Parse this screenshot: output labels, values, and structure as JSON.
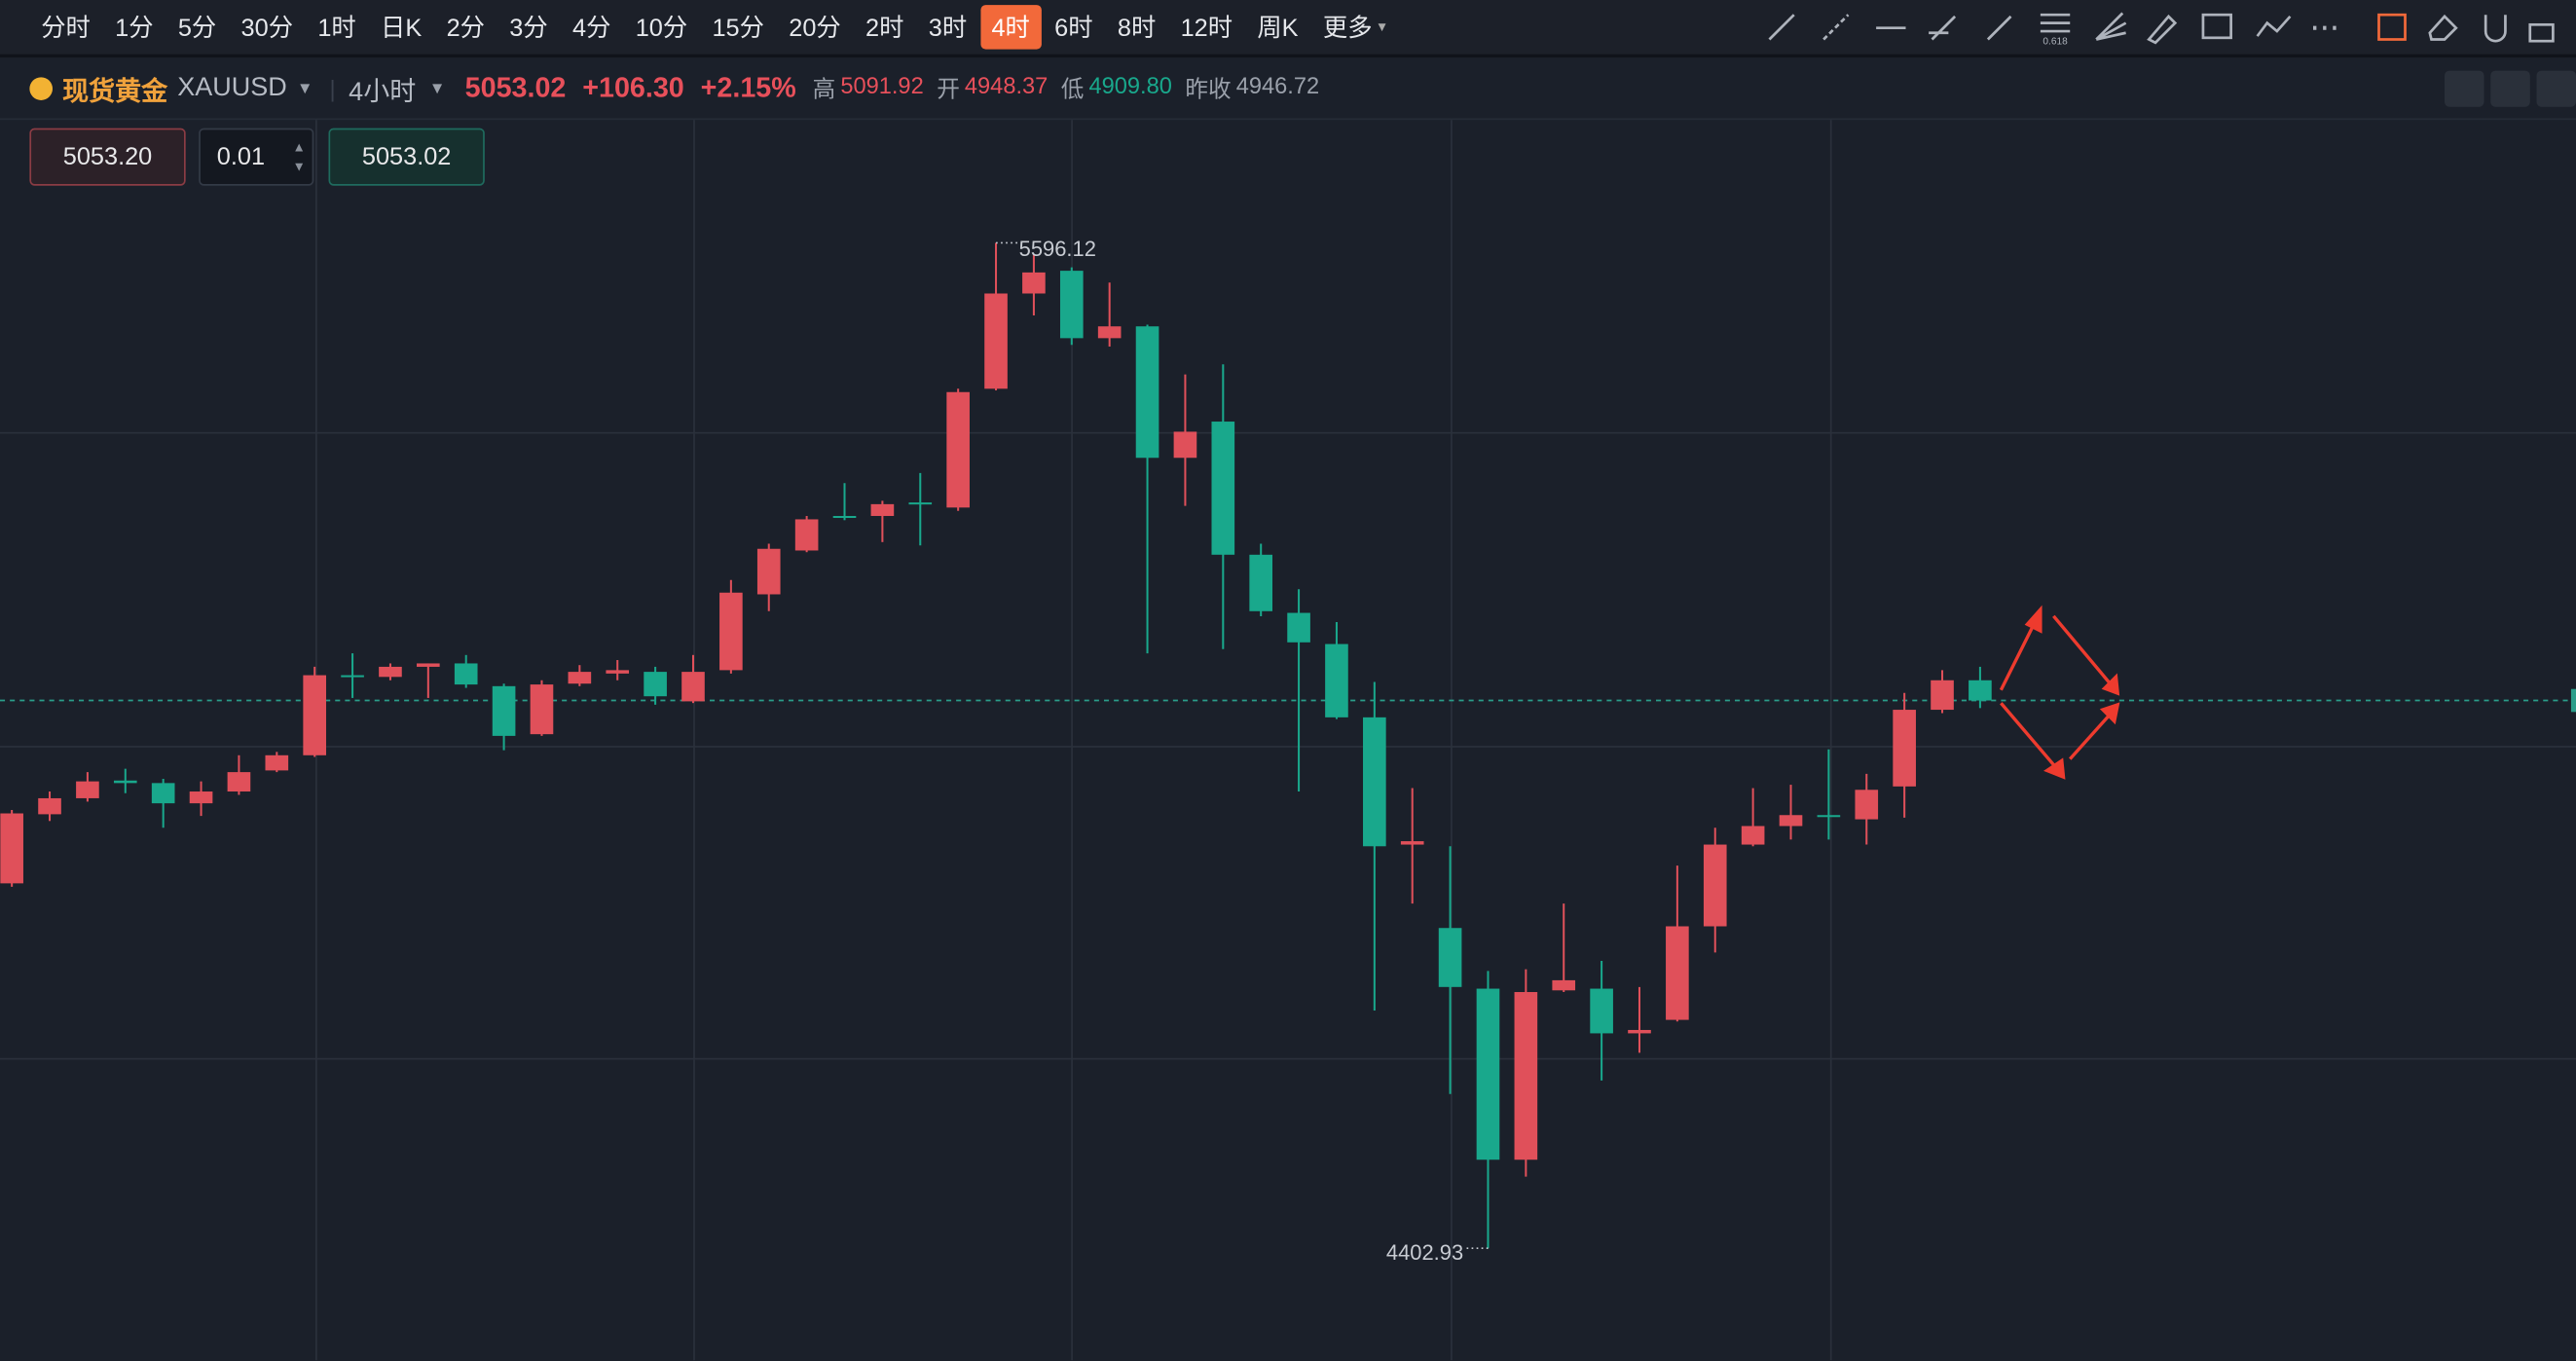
{
  "toolbar": {
    "intervals": [
      "分时",
      "1分",
      "5分",
      "30分",
      "1时",
      "日K",
      "2分",
      "3分",
      "4分",
      "10分",
      "15分",
      "20分",
      "2时",
      "3时",
      "4时",
      "6时",
      "8时",
      "12时",
      "周K",
      "更多"
    ],
    "active_index": 14,
    "fib_icon": "0.618"
  },
  "header": {
    "name": "现货黄金",
    "code": "XAUUSD",
    "period": "4小时",
    "price": "5053.02",
    "change": "+106.30",
    "change_pct": "+2.15%",
    "stats": [
      {
        "label": "高",
        "value": "5091.92"
      },
      {
        "label": "开",
        "value": "4948.37"
      },
      {
        "label": "低",
        "value": "4909.80"
      },
      {
        "label": "昨收",
        "value": "4946.72"
      }
    ]
  },
  "order": {
    "sell": "5053.20",
    "lots": "0.01",
    "buy": "5053.02"
  },
  "chart_data": {
    "type": "candlestick",
    "up_color": "#e0505a",
    "down_color": "#19a88c",
    "ylim": [
      4270,
      5742
    ],
    "high_label": 5596.12,
    "low_label": 4402.93,
    "last_price": 5053.02,
    "ohlc": [
      [
        4836,
        4923,
        4832,
        4919
      ],
      [
        4918,
        4945,
        4910,
        4937
      ],
      [
        4937,
        4968,
        4933,
        4957
      ],
      [
        4958,
        4972,
        4943,
        4955
      ],
      [
        4955,
        4960,
        4902,
        4931
      ],
      [
        4931,
        4957,
        4916,
        4945
      ],
      [
        4945,
        4988,
        4941,
        4968
      ],
      [
        4970,
        4992,
        4968,
        4988
      ],
      [
        4988,
        5093,
        4986,
        5083
      ],
      [
        5083,
        5109,
        5056,
        5081
      ],
      [
        5081,
        5097,
        5077,
        5093
      ],
      [
        5093,
        5097,
        5056,
        5097
      ],
      [
        5097,
        5107,
        5068,
        5072
      ],
      [
        5070,
        5073,
        4994,
        5011
      ],
      [
        5013,
        5077,
        5011,
        5072
      ],
      [
        5073,
        5095,
        5070,
        5087
      ],
      [
        5085,
        5101,
        5077,
        5089
      ],
      [
        5087,
        5093,
        5048,
        5058
      ],
      [
        5052,
        5107,
        5050,
        5087
      ],
      [
        5089,
        5196,
        5085,
        5181
      ],
      [
        5179,
        5239,
        5159,
        5233
      ],
      [
        5231,
        5272,
        5229,
        5268
      ],
      [
        5272,
        5311,
        5267,
        5270
      ],
      [
        5272,
        5290,
        5241,
        5286
      ],
      [
        5288,
        5323,
        5237,
        5286
      ],
      [
        5282,
        5423,
        5278,
        5419
      ],
      [
        5423,
        5596.12,
        5421,
        5536
      ],
      [
        5536,
        5582,
        5510,
        5561
      ],
      [
        5563,
        5567,
        5475,
        5483
      ],
      [
        5483,
        5549,
        5473,
        5497
      ],
      [
        5497,
        5499,
        5109,
        5341
      ],
      [
        5341,
        5440,
        5284,
        5372
      ],
      [
        5384,
        5452,
        5114,
        5226
      ],
      [
        5226,
        5239,
        5153,
        5159
      ],
      [
        5157,
        5185,
        4945,
        5122
      ],
      [
        5120,
        5146,
        5031,
        5033
      ],
      [
        5033,
        5075,
        4685,
        4880
      ],
      [
        4882,
        4949,
        4812,
        4886
      ],
      [
        4783,
        4880,
        4586,
        4713
      ],
      [
        4711,
        4732,
        4402.93,
        4508
      ],
      [
        4508,
        4734,
        4488,
        4707
      ],
      [
        4709,
        4812,
        4707,
        4721
      ],
      [
        4711,
        4744,
        4602,
        4658
      ],
      [
        4658,
        4713,
        4635,
        4662
      ],
      [
        4674,
        4857,
        4672,
        4785
      ],
      [
        4785,
        4902,
        4754,
        4882
      ],
      [
        4882,
        4949,
        4880,
        4904
      ],
      [
        4904,
        4953,
        4888,
        4917
      ],
      [
        4917,
        4995,
        4888,
        4916
      ],
      [
        4912,
        4966,
        4882,
        4947
      ],
      [
        4951,
        5062,
        4914,
        5042
      ],
      [
        5042,
        5089,
        5038,
        5077
      ],
      [
        5077,
        5093,
        5044,
        5053.02
      ]
    ]
  }
}
